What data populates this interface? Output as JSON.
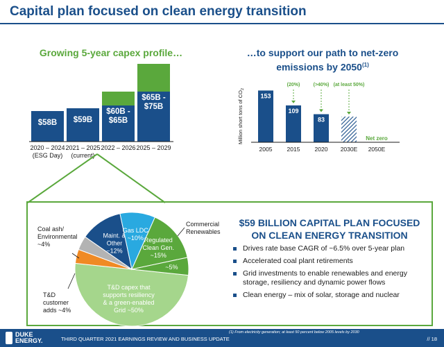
{
  "title": "Capital plan focused on clean energy transition",
  "left_subtitle": "Growing 5-year capex profile…",
  "right_subtitle_line1": "…to support our path to net-zero",
  "right_subtitle_line2": "emissions by 2050",
  "right_subtitle_sup": "(1)",
  "chart_data": [
    {
      "type": "bar",
      "categories": [
        [
          "2020 – 2024",
          "(ESG Day)"
        ],
        [
          "2021 – 2025",
          "(current)"
        ],
        [
          "2022 – 2026"
        ],
        [
          "2025 – 2029"
        ]
      ],
      "series": [
        {
          "values": [
            58,
            59,
            62.5,
            70
          ],
          "ranges": [
            null,
            null,
            [
              60,
              65
            ],
            [
              65,
              75
            ]
          ]
        }
      ],
      "data_labels": [
        [
          "$58B"
        ],
        [
          "$59B"
        ],
        [
          "$60B -",
          "$65B"
        ],
        [
          "$65B -",
          "$75B"
        ]
      ],
      "colors": {
        "low": "#1a4f8a",
        "high": "#5aa83c"
      },
      "title": "Growing 5-year capex profile…"
    },
    {
      "type": "bar",
      "categories": [
        "2005",
        "2015",
        "2020",
        "2030E",
        "2050E"
      ],
      "values": [
        153,
        109,
        83,
        76,
        0
      ],
      "data_labels": [
        "153",
        "109",
        "83",
        "",
        ""
      ],
      "ylabel": "Million short tons of CO",
      "ylabel_sub": "2",
      "reduction_labels": [
        "(20%)",
        "(>40%)",
        "(at least 50%)"
      ],
      "zero_label": "Net zero",
      "hatched": [
        "2030E"
      ],
      "color": "#1a4f8a",
      "ylim": [
        0,
        160
      ]
    },
    {
      "type": "pie",
      "slices": [
        {
          "label": [
            "T&D capex that",
            "supports resiliency",
            "& a green-enabled",
            "Grid ~50%"
          ],
          "value": 50,
          "color": "#a5d68c"
        },
        {
          "label": [
            "T&D",
            "customer",
            "adds ~4%"
          ],
          "value": 4,
          "color": "#f08a24"
        },
        {
          "label": [
            "Coal ash/",
            "Environmental",
            "~4%"
          ],
          "value": 4,
          "color": "#b3b3b3"
        },
        {
          "label": [
            "Maint. &",
            "Other",
            "~12%"
          ],
          "value": 12,
          "color": "#1a4f8a"
        },
        {
          "label": [
            "Gas LDC",
            "~10%"
          ],
          "value": 10,
          "color": "#29a9e0"
        },
        {
          "label": [
            "Regulated",
            "Clean Gen.",
            "~15%"
          ],
          "value": 15,
          "color": "#5aa83c"
        },
        {
          "label": [
            "~5%"
          ],
          "value": 5,
          "color": "#5aa83c"
        }
      ],
      "external_label": [
        "Commercial",
        "Renewables"
      ]
    }
  ],
  "headline_line1": "$59 BILLION CAPITAL PLAN FOCUSED",
  "headline_line2": "ON CLEAN ENERGY TRANSITION",
  "bullets": [
    "Drives rate base CAGR of ~6.5% over 5-year plan",
    "Accelerated coal plant retirements",
    "Grid investments to enable renewables and energy storage, resiliency and dynamic power flows",
    "Clean energy – mix of solar, storage and nuclear"
  ],
  "footer": {
    "logo_line1": "DUKE",
    "logo_line2": "ENERGY.",
    "text": "THIRD QUARTER 2021 EARNINGS REVIEW AND BUSINESS UPDATE",
    "footnote": "(1)   From electricity generation; at least 50 percent below 2005 levels by 2030",
    "page": "// 18"
  }
}
